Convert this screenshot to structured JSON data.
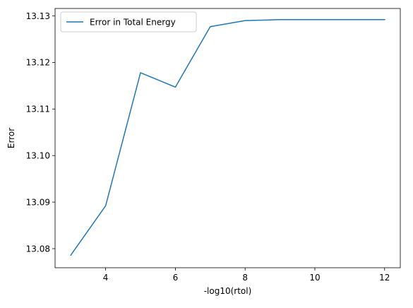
{
  "chart_data": {
    "type": "line",
    "title": "",
    "xlabel": "-log10(rtol)",
    "ylabel": "Error",
    "xlim": [
      2.55,
      12.45
    ],
    "ylim": [
      13.0759,
      13.1316
    ],
    "xticks": [
      4,
      6,
      8,
      10,
      12
    ],
    "xtick_labels": [
      "4",
      "6",
      "8",
      "10",
      "12"
    ],
    "yticks": [
      13.08,
      13.09,
      13.1,
      13.11,
      13.12,
      13.13
    ],
    "ytick_labels": [
      "13.08",
      "13.09",
      "13.10",
      "13.11",
      "13.12",
      "13.13"
    ],
    "grid": false,
    "legend": {
      "placement": "upper-left"
    },
    "series": [
      {
        "name": "Error in Total Energy",
        "color": "#1f77b4",
        "x": [
          3,
          4,
          5,
          6,
          7,
          8,
          9,
          10,
          11,
          12
        ],
        "y": [
          13.0786,
          13.0892,
          13.1178,
          13.1147,
          13.1277,
          13.129,
          13.1292,
          13.1292,
          13.1292,
          13.1292
        ]
      }
    ]
  }
}
